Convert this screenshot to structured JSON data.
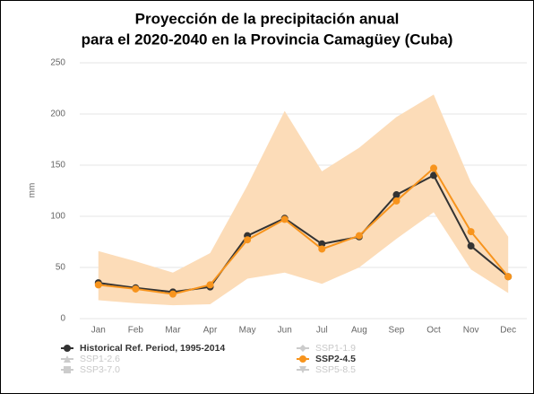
{
  "chart_data": {
    "type": "line",
    "title": [
      "Proyección de la precipitación anual",
      "para el 2020-2040 en la Provincia Camagüey (Cuba)"
    ],
    "y_label": "mm",
    "categories": [
      "Jan",
      "Feb",
      "Mar",
      "Apr",
      "May",
      "Jun",
      "Jul",
      "Aug",
      "Sep",
      "Oct",
      "Nov",
      "Dec"
    ],
    "ylim": [
      0,
      250
    ],
    "yticks": [
      0,
      50,
      100,
      150,
      200,
      250
    ],
    "grid": true,
    "band": {
      "color": "#fcdcb8",
      "upper": [
        66,
        56,
        45,
        64,
        130,
        203,
        144,
        167,
        197,
        219,
        133,
        80
      ],
      "lower": [
        18,
        15,
        13,
        14,
        39,
        45,
        34,
        50,
        78,
        104,
        48,
        25
      ]
    },
    "series": [
      {
        "name": "Historical Ref. Period, 1995-2014",
        "color": "#333333",
        "marker": "circle",
        "visible": true,
        "values": [
          35,
          30,
          26,
          31,
          81,
          98,
          73,
          80,
          121,
          140,
          71,
          41
        ]
      },
      {
        "name": "SSP1-1.9",
        "color": "#cccccc",
        "marker": "diamond",
        "visible": false
      },
      {
        "name": "SSP1-2.6",
        "color": "#cccccc",
        "marker": "triangle",
        "visible": false
      },
      {
        "name": "SSP2-4.5",
        "color": "#f7941d",
        "marker": "circle",
        "visible": true,
        "values": [
          33,
          29,
          24,
          33,
          77,
          97,
          68,
          81,
          115,
          147,
          85,
          41
        ]
      },
      {
        "name": "SSP3-7.0",
        "color": "#cccccc",
        "marker": "square",
        "visible": false
      },
      {
        "name": "SSP5-8.5",
        "color": "#cccccc",
        "marker": "triangle-down",
        "visible": false
      }
    ]
  }
}
